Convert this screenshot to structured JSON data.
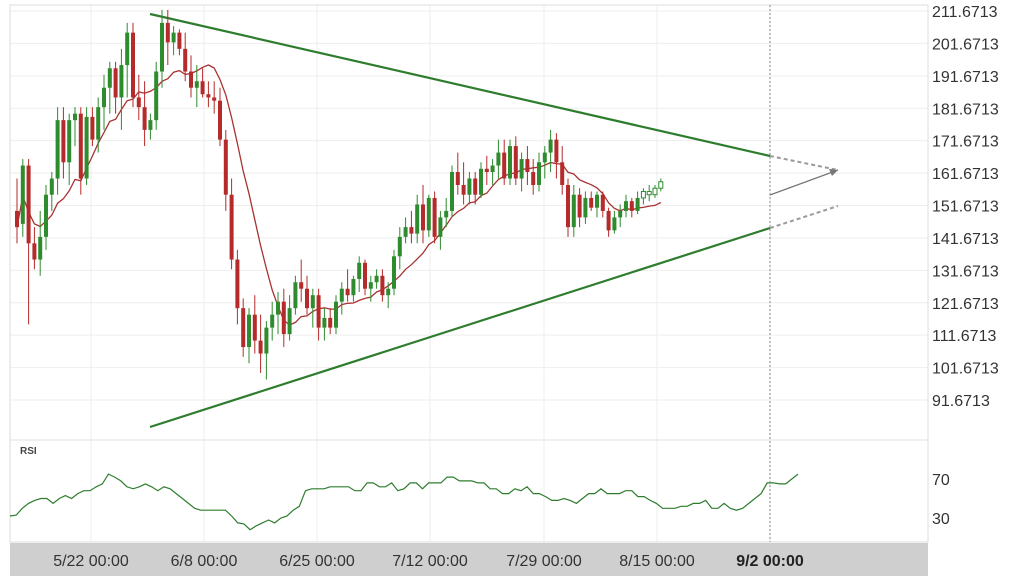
{
  "chart_data": {
    "type": "candlestick",
    "price_axis": {
      "ticks": [
        "211.6713",
        "201.6713",
        "191.6713",
        "181.6713",
        "171.6713",
        "161.6713",
        "151.6713",
        "141.6713",
        "131.6713",
        "121.6713",
        "111.6713",
        "101.6713",
        "91.6713"
      ]
    },
    "time_axis": {
      "labels": [
        "5/22 00:00",
        "6/8 00:00",
        "6/25 00:00",
        "7/12 00:00",
        "7/29 00:00",
        "8/15 00:00"
      ],
      "current_label": "9/2 00:00"
    },
    "rsi": {
      "label": "RSI",
      "levels": [
        "70",
        "30"
      ],
      "values": [
        32,
        33,
        40,
        45,
        48,
        50,
        50,
        45,
        50,
        53,
        50,
        55,
        58,
        58,
        62,
        65,
        75,
        72,
        68,
        62,
        60,
        62,
        65,
        62,
        58,
        62,
        60,
        55,
        50,
        45,
        40,
        38,
        38,
        38,
        38,
        38,
        32,
        25,
        24,
        18,
        22,
        25,
        28,
        25,
        30,
        32,
        38,
        42,
        58,
        60,
        60,
        60,
        62,
        62,
        62,
        62,
        58,
        58,
        66,
        66,
        62,
        62,
        66,
        58,
        60,
        66,
        66,
        60,
        66,
        66,
        66,
        72,
        72,
        68,
        68,
        68,
        66,
        66,
        60,
        60,
        55,
        55,
        60,
        58,
        62,
        55,
        55,
        52,
        48,
        48,
        50,
        48,
        45,
        50,
        55,
        55,
        60,
        55,
        55,
        55,
        58,
        58,
        52,
        52,
        48,
        45,
        40,
        40,
        40,
        42,
        42,
        45,
        45,
        48,
        40,
        40,
        45,
        40,
        38,
        40,
        45,
        50,
        55,
        66,
        66,
        65,
        65,
        70,
        75
      ]
    },
    "candles": [
      {
        "o": 150,
        "h": 160,
        "l": 140,
        "c": 145
      },
      {
        "o": 146,
        "h": 166,
        "l": 142,
        "c": 164
      },
      {
        "o": 164,
        "h": 166,
        "l": 115,
        "c": 140
      },
      {
        "o": 140,
        "h": 145,
        "l": 132,
        "c": 135
      },
      {
        "o": 135,
        "h": 150,
        "l": 130,
        "c": 142
      },
      {
        "o": 142,
        "h": 158,
        "l": 138,
        "c": 155
      },
      {
        "o": 155,
        "h": 162,
        "l": 150,
        "c": 160
      },
      {
        "o": 160,
        "h": 182,
        "l": 155,
        "c": 178
      },
      {
        "o": 178,
        "h": 182,
        "l": 160,
        "c": 165
      },
      {
        "o": 165,
        "h": 180,
        "l": 158,
        "c": 178
      },
      {
        "o": 178,
        "h": 182,
        "l": 170,
        "c": 180
      },
      {
        "o": 180,
        "h": 182,
        "l": 155,
        "c": 160
      },
      {
        "o": 160,
        "h": 182,
        "l": 158,
        "c": 179
      },
      {
        "o": 179,
        "h": 182,
        "l": 170,
        "c": 172
      },
      {
        "o": 172,
        "h": 185,
        "l": 168,
        "c": 182
      },
      {
        "o": 182,
        "h": 192,
        "l": 175,
        "c": 188
      },
      {
        "o": 188,
        "h": 196,
        "l": 180,
        "c": 194
      },
      {
        "o": 194,
        "h": 196,
        "l": 180,
        "c": 185
      },
      {
        "o": 185,
        "h": 200,
        "l": 175,
        "c": 195
      },
      {
        "o": 195,
        "h": 208,
        "l": 185,
        "c": 205
      },
      {
        "o": 205,
        "h": 208,
        "l": 182,
        "c": 185
      },
      {
        "o": 185,
        "h": 192,
        "l": 178,
        "c": 182
      },
      {
        "o": 182,
        "h": 190,
        "l": 170,
        "c": 175
      },
      {
        "o": 175,
        "h": 180,
        "l": 172,
        "c": 178
      },
      {
        "o": 178,
        "h": 196,
        "l": 175,
        "c": 193
      },
      {
        "o": 193,
        "h": 212,
        "l": 188,
        "c": 208
      },
      {
        "o": 208,
        "h": 212,
        "l": 195,
        "c": 202
      },
      {
        "o": 202,
        "h": 207,
        "l": 198,
        "c": 205
      },
      {
        "o": 205,
        "h": 206,
        "l": 198,
        "c": 200
      },
      {
        "o": 200,
        "h": 205,
        "l": 190,
        "c": 193
      },
      {
        "o": 193,
        "h": 198,
        "l": 185,
        "c": 188
      },
      {
        "o": 188,
        "h": 195,
        "l": 182,
        "c": 190
      },
      {
        "o": 190,
        "h": 194,
        "l": 185,
        "c": 186
      },
      {
        "o": 186,
        "h": 190,
        "l": 182,
        "c": 185
      },
      {
        "o": 185,
        "h": 190,
        "l": 180,
        "c": 184
      },
      {
        "o": 184,
        "h": 188,
        "l": 170,
        "c": 172
      },
      {
        "o": 172,
        "h": 175,
        "l": 150,
        "c": 155
      },
      {
        "o": 155,
        "h": 160,
        "l": 132,
        "c": 135
      },
      {
        "o": 135,
        "h": 138,
        "l": 115,
        "c": 120
      },
      {
        "o": 120,
        "h": 123,
        "l": 105,
        "c": 108
      },
      {
        "o": 108,
        "h": 120,
        "l": 103,
        "c": 118
      },
      {
        "o": 118,
        "h": 124,
        "l": 106,
        "c": 110
      },
      {
        "o": 110,
        "h": 118,
        "l": 100,
        "c": 106
      },
      {
        "o": 106,
        "h": 116,
        "l": 98,
        "c": 114
      },
      {
        "o": 114,
        "h": 122,
        "l": 110,
        "c": 118
      },
      {
        "o": 118,
        "h": 125,
        "l": 112,
        "c": 122
      },
      {
        "o": 122,
        "h": 126,
        "l": 108,
        "c": 112
      },
      {
        "o": 112,
        "h": 124,
        "l": 110,
        "c": 120
      },
      {
        "o": 120,
        "h": 130,
        "l": 118,
        "c": 128
      },
      {
        "o": 128,
        "h": 135,
        "l": 122,
        "c": 126
      },
      {
        "o": 126,
        "h": 130,
        "l": 118,
        "c": 120
      },
      {
        "o": 120,
        "h": 126,
        "l": 114,
        "c": 124
      },
      {
        "o": 124,
        "h": 126,
        "l": 110,
        "c": 114
      },
      {
        "o": 114,
        "h": 120,
        "l": 110,
        "c": 117
      },
      {
        "o": 117,
        "h": 120,
        "l": 112,
        "c": 114
      },
      {
        "o": 114,
        "h": 124,
        "l": 112,
        "c": 122
      },
      {
        "o": 122,
        "h": 128,
        "l": 118,
        "c": 126
      },
      {
        "o": 126,
        "h": 132,
        "l": 122,
        "c": 124
      },
      {
        "o": 124,
        "h": 130,
        "l": 122,
        "c": 129
      },
      {
        "o": 129,
        "h": 136,
        "l": 125,
        "c": 134
      },
      {
        "o": 134,
        "h": 135,
        "l": 124,
        "c": 126
      },
      {
        "o": 126,
        "h": 130,
        "l": 122,
        "c": 128
      },
      {
        "o": 128,
        "h": 132,
        "l": 126,
        "c": 130
      },
      {
        "o": 130,
        "h": 132,
        "l": 122,
        "c": 124
      },
      {
        "o": 124,
        "h": 128,
        "l": 120,
        "c": 126
      },
      {
        "o": 126,
        "h": 138,
        "l": 124,
        "c": 136
      },
      {
        "o": 136,
        "h": 145,
        "l": 132,
        "c": 142
      },
      {
        "o": 142,
        "h": 148,
        "l": 140,
        "c": 145
      },
      {
        "o": 145,
        "h": 150,
        "l": 140,
        "c": 143
      },
      {
        "o": 143,
        "h": 155,
        "l": 140,
        "c": 152
      },
      {
        "o": 152,
        "h": 158,
        "l": 140,
        "c": 144
      },
      {
        "o": 144,
        "h": 155,
        "l": 142,
        "c": 154
      },
      {
        "o": 154,
        "h": 156,
        "l": 140,
        "c": 142
      },
      {
        "o": 142,
        "h": 150,
        "l": 138,
        "c": 148
      },
      {
        "o": 148,
        "h": 154,
        "l": 145,
        "c": 150
      },
      {
        "o": 150,
        "h": 164,
        "l": 148,
        "c": 162
      },
      {
        "o": 162,
        "h": 168,
        "l": 155,
        "c": 158
      },
      {
        "o": 158,
        "h": 165,
        "l": 152,
        "c": 155
      },
      {
        "o": 155,
        "h": 162,
        "l": 152,
        "c": 160
      },
      {
        "o": 160,
        "h": 162,
        "l": 152,
        "c": 155
      },
      {
        "o": 155,
        "h": 165,
        "l": 154,
        "c": 163
      },
      {
        "o": 163,
        "h": 167,
        "l": 158,
        "c": 162
      },
      {
        "o": 162,
        "h": 166,
        "l": 158,
        "c": 164
      },
      {
        "o": 164,
        "h": 172,
        "l": 160,
        "c": 168
      },
      {
        "o": 168,
        "h": 172,
        "l": 158,
        "c": 160
      },
      {
        "o": 160,
        "h": 172,
        "l": 158,
        "c": 170
      },
      {
        "o": 170,
        "h": 173,
        "l": 158,
        "c": 160
      },
      {
        "o": 160,
        "h": 168,
        "l": 156,
        "c": 166
      },
      {
        "o": 166,
        "h": 170,
        "l": 158,
        "c": 162
      },
      {
        "o": 162,
        "h": 166,
        "l": 155,
        "c": 158
      },
      {
        "o": 158,
        "h": 168,
        "l": 156,
        "c": 165
      },
      {
        "o": 165,
        "h": 170,
        "l": 160,
        "c": 168
      },
      {
        "o": 168,
        "h": 175,
        "l": 162,
        "c": 172
      },
      {
        "o": 172,
        "h": 174,
        "l": 160,
        "c": 165
      },
      {
        "o": 165,
        "h": 170,
        "l": 155,
        "c": 158
      },
      {
        "o": 158,
        "h": 160,
        "l": 142,
        "c": 145
      },
      {
        "o": 145,
        "h": 158,
        "l": 142,
        "c": 155
      },
      {
        "o": 155,
        "h": 157,
        "l": 145,
        "c": 148
      },
      {
        "o": 148,
        "h": 156,
        "l": 146,
        "c": 154
      },
      {
        "o": 154,
        "h": 156,
        "l": 150,
        "c": 151
      },
      {
        "o": 151,
        "h": 156,
        "l": 148,
        "c": 155
      },
      {
        "o": 155,
        "h": 156,
        "l": 148,
        "c": 150
      },
      {
        "o": 150,
        "h": 151,
        "l": 142,
        "c": 144
      },
      {
        "o": 144,
        "h": 150,
        "l": 143,
        "c": 148
      },
      {
        "o": 148,
        "h": 152,
        "l": 145,
        "c": 150
      },
      {
        "o": 150,
        "h": 155,
        "l": 148,
        "c": 153
      },
      {
        "o": 153,
        "h": 154,
        "l": 148,
        "c": 150
      },
      {
        "o": 150,
        "h": 156,
        "l": 149,
        "c": 154
      },
      {
        "o": 154,
        "h": 157,
        "l": 152,
        "c": 156
      },
      {
        "o": 156,
        "h": 158,
        "l": 153,
        "c": 155
      },
      {
        "o": 155,
        "h": 158,
        "l": 154,
        "c": 157
      },
      {
        "o": 157,
        "h": 160,
        "l": 156,
        "c": 159
      }
    ]
  },
  "colors": {
    "up": "#2e8b2e",
    "down": "#b52a2a",
    "trendline": "#2e7d2e",
    "moving_average": "#a83232",
    "projection": "#9a9a9a",
    "rsi_line": "#2e7d2e",
    "axis_text": "#333333",
    "axis_bar": "#cfcfcf",
    "grid": "#eeeeee"
  }
}
